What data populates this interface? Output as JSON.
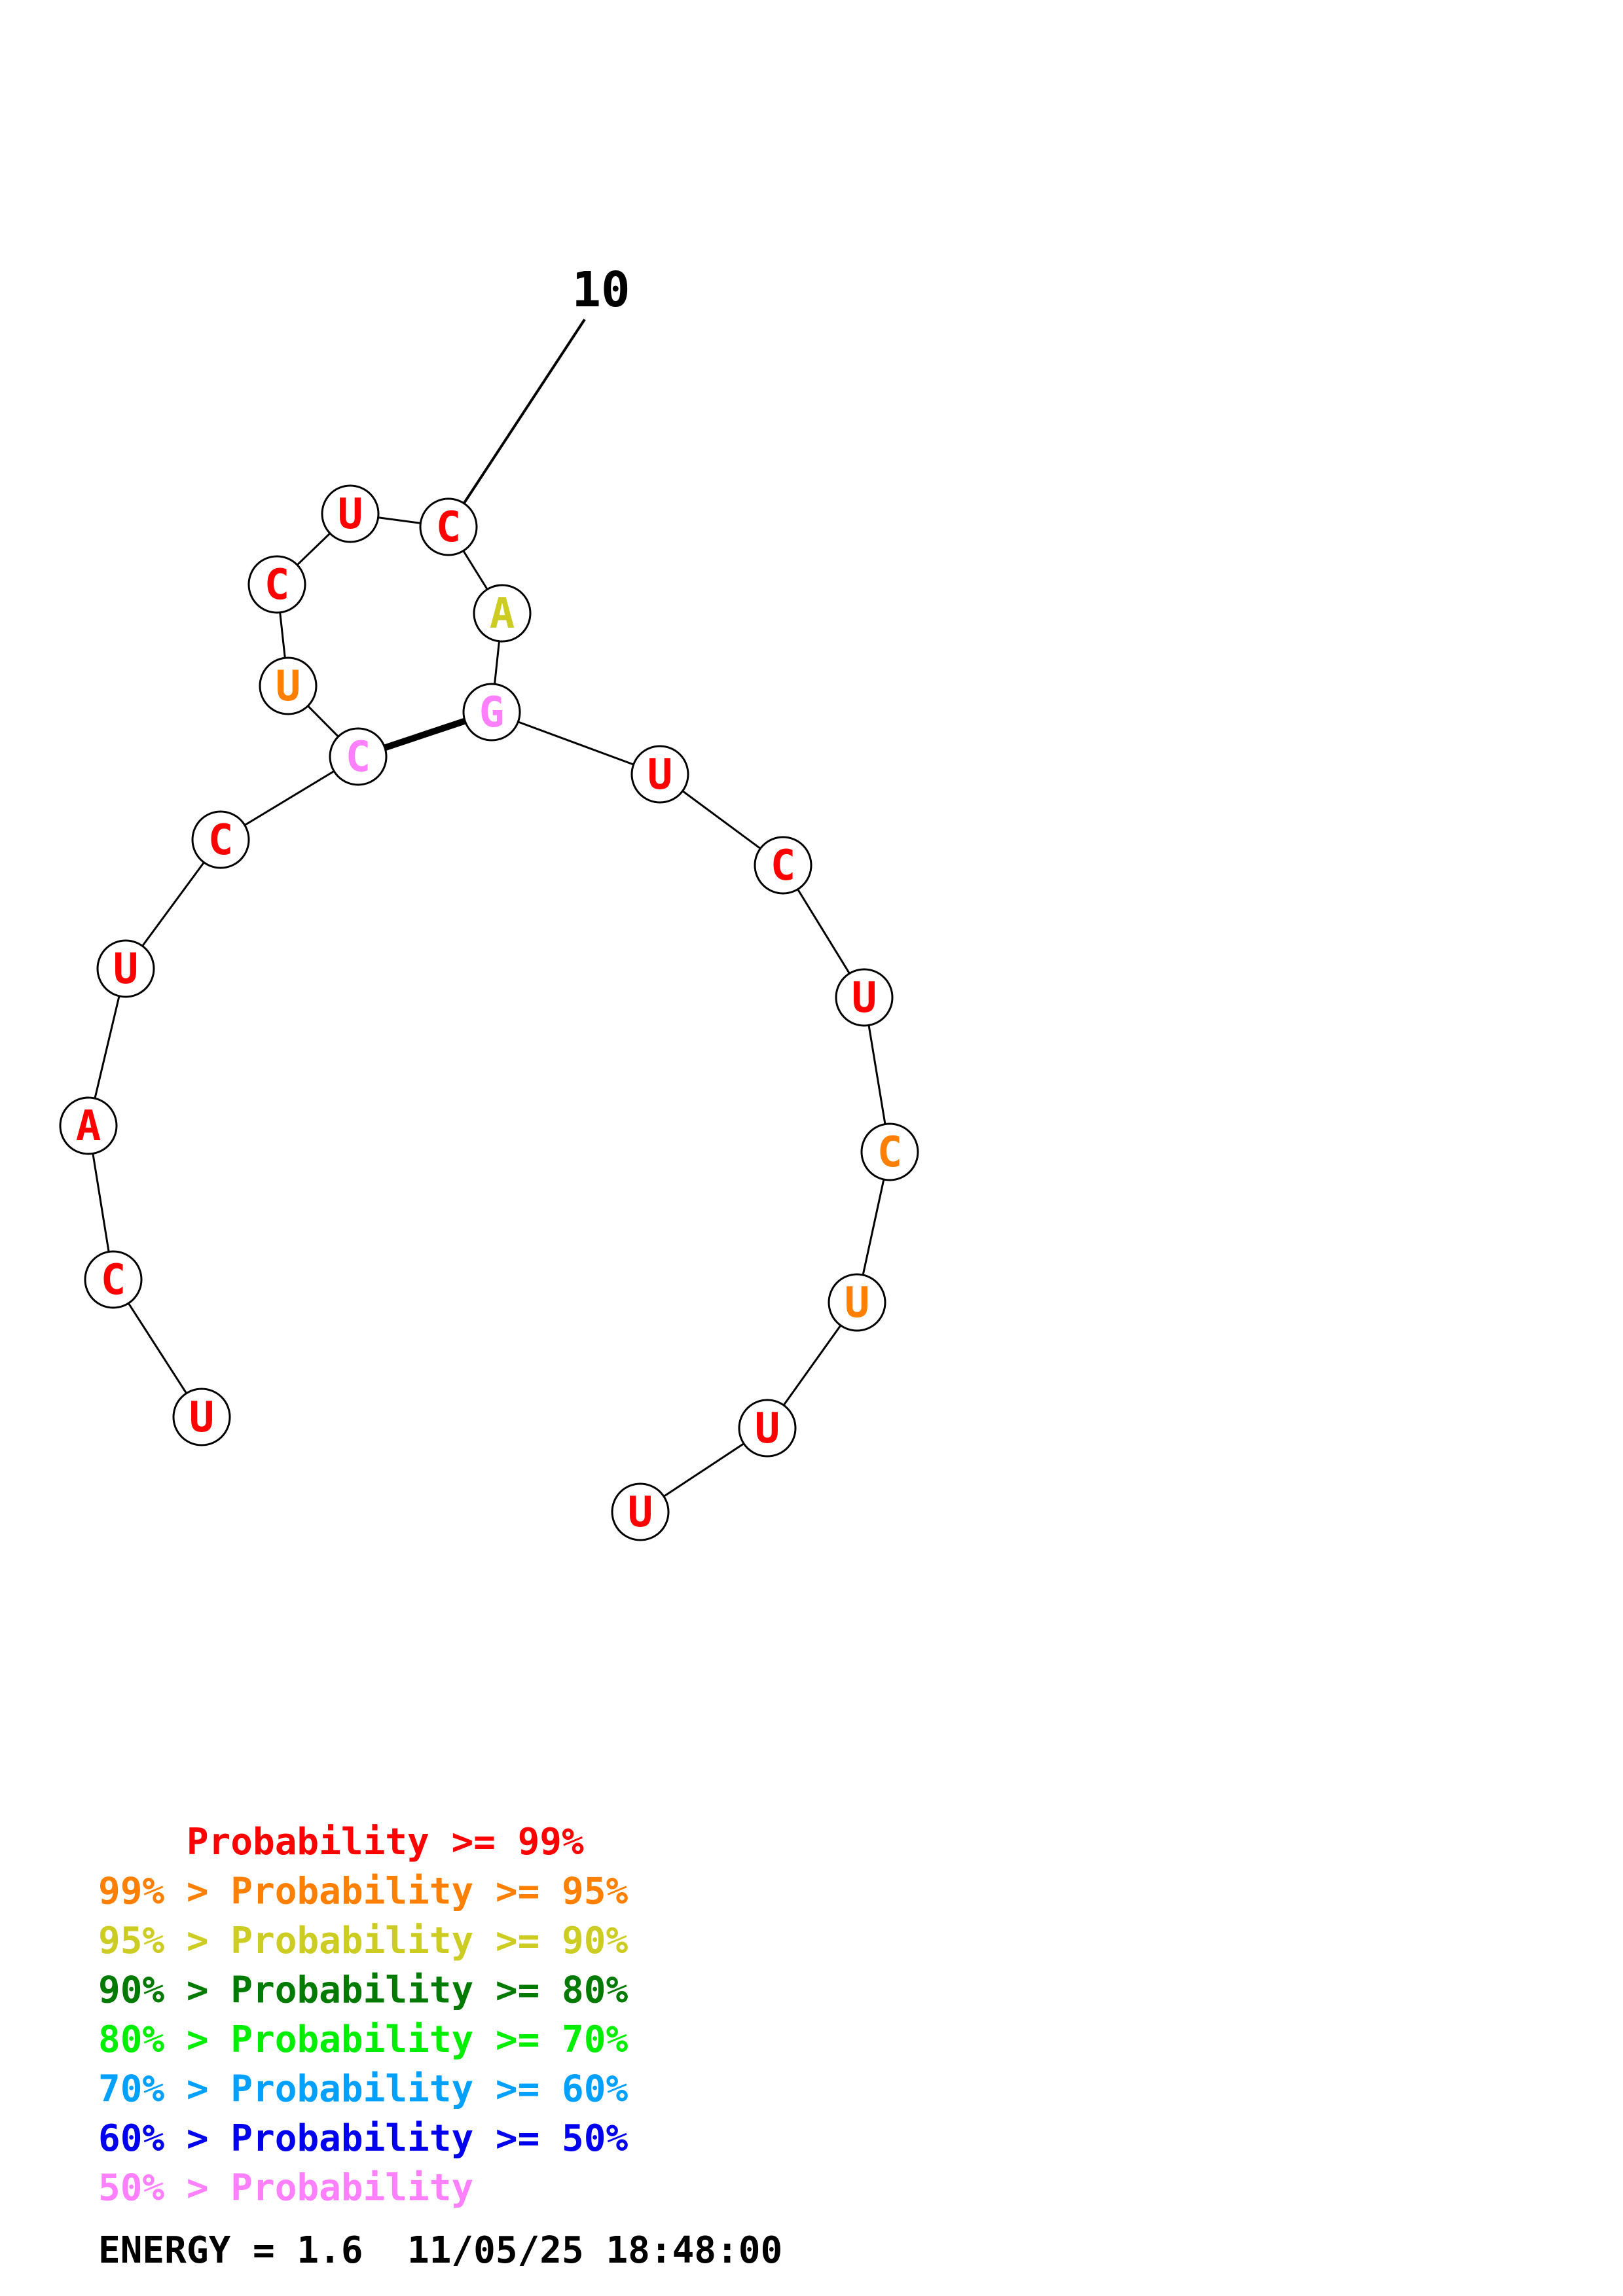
{
  "diagram": {
    "tick_label": "10",
    "nucleotides": [
      {
        "letter": "U",
        "prob_class": "red"
      },
      {
        "letter": "C",
        "prob_class": "red"
      },
      {
        "letter": "A",
        "prob_class": "red"
      },
      {
        "letter": "U",
        "prob_class": "red"
      },
      {
        "letter": "C",
        "prob_class": "red"
      },
      {
        "letter": "C",
        "prob_class": "pink"
      },
      {
        "letter": "U",
        "prob_class": "orange"
      },
      {
        "letter": "C",
        "prob_class": "red"
      },
      {
        "letter": "U",
        "prob_class": "red"
      },
      {
        "letter": "C",
        "prob_class": "red"
      },
      {
        "letter": "A",
        "prob_class": "yellow"
      },
      {
        "letter": "G",
        "prob_class": "pink"
      },
      {
        "letter": "U",
        "prob_class": "red"
      },
      {
        "letter": "C",
        "prob_class": "red"
      },
      {
        "letter": "U",
        "prob_class": "red"
      },
      {
        "letter": "C",
        "prob_class": "orange"
      },
      {
        "letter": "U",
        "prob_class": "orange"
      },
      {
        "letter": "U",
        "prob_class": "red"
      },
      {
        "letter": "U",
        "prob_class": "red"
      }
    ],
    "base_pairs": [
      [
        6,
        12
      ]
    ]
  },
  "colors": {
    "red": "#ff0000",
    "orange": "#ff8000",
    "yellow": "#cccc22",
    "dark_green": "#007a00",
    "green": "#00ee00",
    "light_blue": "#00a0ff",
    "blue": "#0000ee",
    "pink": "#ff80ff"
  },
  "legend": [
    {
      "prefix": "    ",
      "prefix_color": "red",
      "text": "Probability >= 99%",
      "color": "red"
    },
    {
      "prefix": "99% > ",
      "prefix_color": "orange",
      "text": "Probability >= 95%",
      "color": "orange"
    },
    {
      "prefix": "95% > ",
      "prefix_color": "yellow",
      "text": "Probability >= 90%",
      "color": "yellow"
    },
    {
      "prefix": "90% > ",
      "prefix_color": "dark_green",
      "text": "Probability >= 80%",
      "color": "dark_green"
    },
    {
      "prefix": "80% > ",
      "prefix_color": "green",
      "text": "Probability >= 70%",
      "color": "green"
    },
    {
      "prefix": "70% > ",
      "prefix_color": "light_blue",
      "text": "Probability >= 60%",
      "color": "light_blue"
    },
    {
      "prefix": "60% > ",
      "prefix_color": "blue",
      "text": "Probability >= 50%",
      "color": "blue"
    },
    {
      "prefix": "50% > ",
      "prefix_color": "pink",
      "text": "Probability",
      "color": "pink"
    }
  ],
  "footer": {
    "energy": "ENERGY = 1.6  11/05/25 18:48:00"
  }
}
